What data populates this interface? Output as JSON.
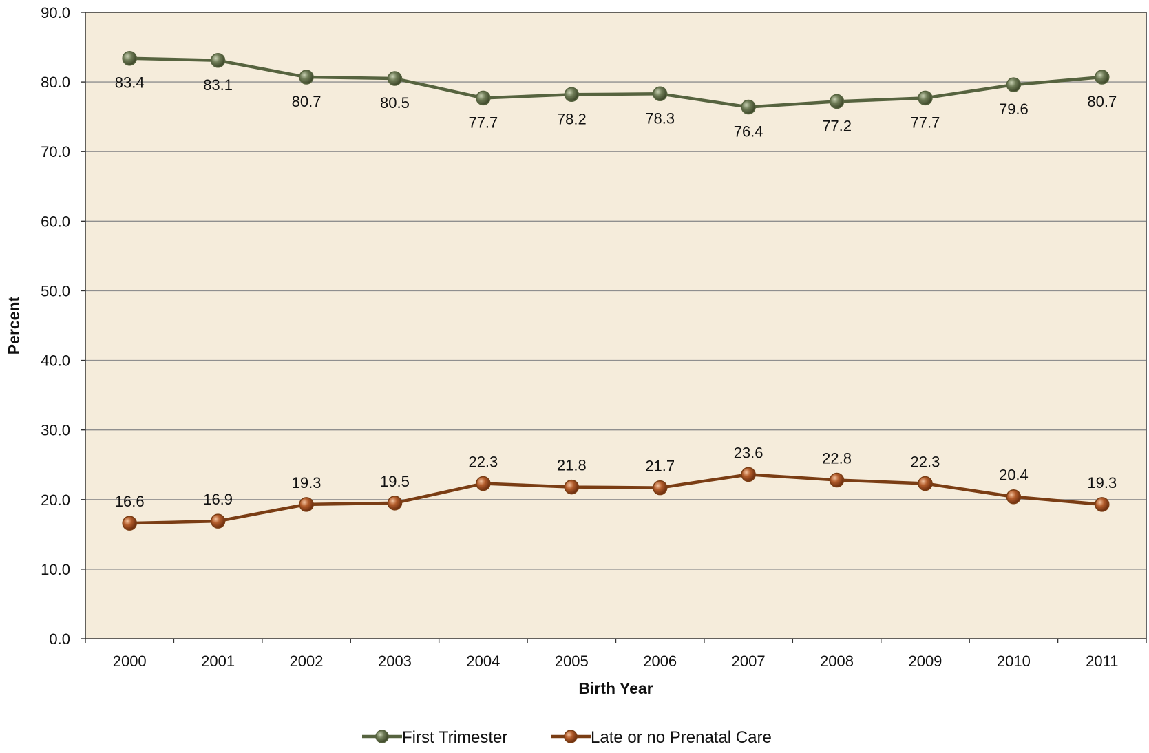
{
  "chart_data": {
    "type": "line",
    "xlabel": "Birth Year",
    "ylabel": "Percent",
    "ylim": [
      0,
      90
    ],
    "yticks": [
      "0.0",
      "10.0",
      "20.0",
      "30.0",
      "40.0",
      "50.0",
      "60.0",
      "70.0",
      "80.0",
      "90.0"
    ],
    "categories": [
      "2000",
      "2001",
      "2002",
      "2003",
      "2004",
      "2005",
      "2006",
      "2007",
      "2008",
      "2009",
      "2010",
      "2011"
    ],
    "grid": "horizontal",
    "background": "#f5ecdb",
    "legend_position": "bottom",
    "series": [
      {
        "name": "First Trimester",
        "color": "#56633f",
        "marker_color": "#5c6a48",
        "label_position": "below",
        "values": [
          83.4,
          83.1,
          80.7,
          80.5,
          77.7,
          78.2,
          78.3,
          76.4,
          77.2,
          77.7,
          79.6,
          80.7
        ],
        "labels": [
          "83.4",
          "83.1",
          "80.7",
          "80.5",
          "77.7",
          "78.2",
          "78.3",
          "76.4",
          "77.2",
          "77.7",
          "79.6",
          "80.7"
        ]
      },
      {
        "name": "Late or no Prenatal Care",
        "color": "#7a3d14",
        "marker_color": "#a0522a",
        "label_position": "above",
        "values": [
          16.6,
          16.9,
          19.3,
          19.5,
          22.3,
          21.8,
          21.7,
          23.6,
          22.8,
          22.3,
          20.4,
          19.3
        ],
        "labels": [
          "16.6",
          "16.9",
          "19.3",
          "19.5",
          "22.3",
          "21.8",
          "21.7",
          "23.6",
          "22.8",
          "22.3",
          "20.4",
          "19.3"
        ]
      }
    ]
  }
}
